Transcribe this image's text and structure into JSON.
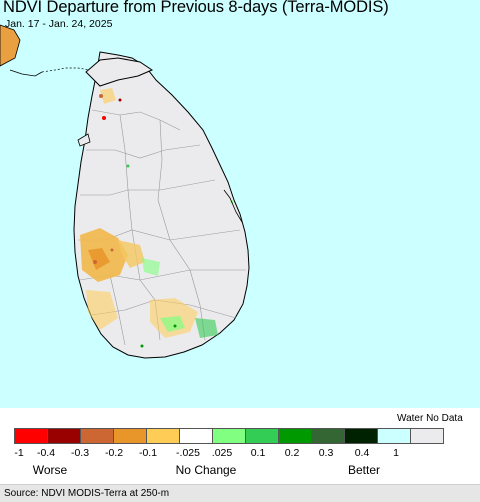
{
  "header": {
    "title": "NDVI Departure from Previous 8-days (Terra-MODIS)",
    "date_range": "Jan. 17 - Jan. 24, 2025"
  },
  "legend": {
    "water_no_data_label": "Water No Data",
    "ticks": [
      "-1",
      "-0.4",
      "-0.3",
      "-0.2",
      "-0.1",
      "-.025",
      ".025",
      "0.1",
      "0.2",
      "0.3",
      "0.4",
      "1"
    ],
    "categories": [
      "Worse",
      "No Change",
      "Better"
    ],
    "colors": [
      "#ff0000",
      "#990000",
      "#cc6633",
      "#e8952a",
      "#ffcc55",
      "#ffffff",
      "#80ff80",
      "#33cc55",
      "#009900",
      "#336633",
      "#002200",
      "#ccffff",
      "#ebebee"
    ]
  },
  "colors": {
    "water": "#ccffff",
    "land_no_change": "#ebebee",
    "boundary": "#888888",
    "coast": "#000000"
  },
  "footer": {
    "source": "Source: NDVI MODIS-Terra at 250-m"
  }
}
